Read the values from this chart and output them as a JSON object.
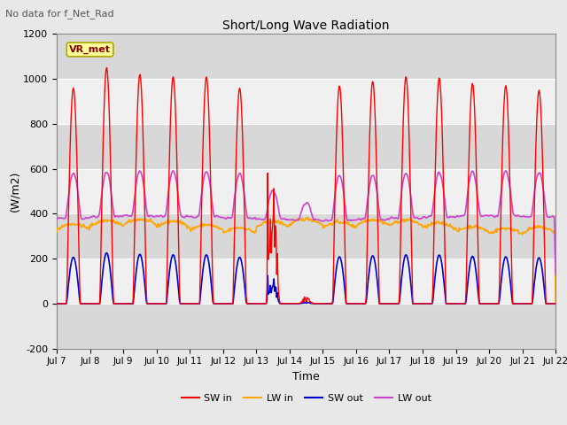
{
  "title": "Short/Long Wave Radiation",
  "subtitle": "No data for f_Net_Rad",
  "xlabel": "Time",
  "ylabel": "(W/m2)",
  "ylim": [
    -200,
    1200
  ],
  "yticks": [
    -200,
    0,
    200,
    400,
    600,
    800,
    1000,
    1200
  ],
  "n_days": 15,
  "xtick_labels": [
    "Jul 7",
    "Jul 8",
    "Jul 9",
    "Jul 10",
    "Jul 11",
    "Jul 12",
    "Jul 13",
    "Jul 14",
    "Jul 15",
    "Jul 16",
    "Jul 17",
    "Jul 18",
    "Jul 19",
    "Jul 20",
    "Jul 21",
    "Jul 22"
  ],
  "legend_label": "VR_met",
  "colors": {
    "SW_in": "#ff0000",
    "LW_in": "#ffa500",
    "SW_out": "#0000cc",
    "LW_out": "#cc44cc"
  },
  "fig_bg": "#e8e8e8",
  "plot_bg": "#e8e8e8",
  "band_light": "#f0f0f0",
  "band_dark": "#d8d8d8",
  "grid_color": "#ffffff"
}
